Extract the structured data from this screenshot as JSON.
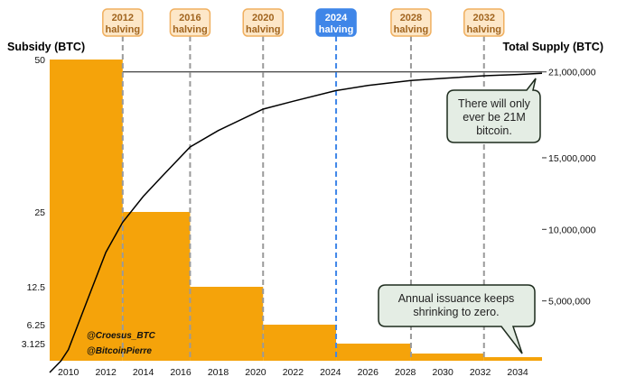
{
  "chart_data": {
    "type": "step-area + line",
    "x_ticks": [
      "2010",
      "2012",
      "2014",
      "2016",
      "2018",
      "2020",
      "2022",
      "2024",
      "2026",
      "2028",
      "2030",
      "2032",
      "2034"
    ],
    "left_axis": {
      "title": "Subsidy (BTC)",
      "tick_labels": [
        "50",
        "25",
        "12.5",
        "6.25",
        "3.125"
      ],
      "tick_values": [
        50,
        25,
        12.5,
        6.25,
        3.125
      ]
    },
    "right_axis": {
      "title": "Total Supply (BTC)",
      "tick_labels": [
        "21,000,000",
        "15,000,000",
        "10,000,000",
        "5,000,000"
      ],
      "tick_values": [
        21000000,
        15000000,
        10000000,
        5000000
      ]
    },
    "subsidy_steps": [
      {
        "from": 2009.0,
        "to": 2012.9,
        "value": 50
      },
      {
        "from": 2012.9,
        "to": 2016.5,
        "value": 25
      },
      {
        "from": 2016.5,
        "to": 2020.4,
        "value": 12.5
      },
      {
        "from": 2020.4,
        "to": 2024.3,
        "value": 6.25
      },
      {
        "from": 2024.3,
        "to": 2028.3,
        "value": 3.125
      },
      {
        "from": 2028.3,
        "to": 2032.2,
        "value": 1.5625
      },
      {
        "from": 2032.2,
        "to": 2035.3,
        "value": 0.78125
      }
    ],
    "supply_series": {
      "x": [
        2009.0,
        2009.6,
        2010.0,
        2011.0,
        2012.0,
        2012.9,
        2014.0,
        2015.0,
        2016.5,
        2018.0,
        2020.4,
        2022.0,
        2024.3,
        2026.0,
        2028.3,
        2030.0,
        2032.2,
        2034.0,
        2035.3
      ],
      "y": [
        0,
        800000,
        1600000,
        5000000,
        8400000,
        10500000,
        12300000,
        13700000,
        15750000,
        16900000,
        18400000,
        18950000,
        19700000,
        20050000,
        20400000,
        20550000,
        20730000,
        20820000,
        20900000
      ]
    },
    "max_supply_line": 21000000,
    "halvings": [
      {
        "year_label": "2012",
        "word": "halving",
        "x": 2012.9,
        "highlight": false
      },
      {
        "year_label": "2016",
        "word": "halving",
        "x": 2016.5,
        "highlight": false
      },
      {
        "year_label": "2020",
        "word": "halving",
        "x": 2020.4,
        "highlight": false
      },
      {
        "year_label": "2024",
        "word": "halving",
        "x": 2024.3,
        "highlight": true
      },
      {
        "year_label": "2028",
        "word": "halving",
        "x": 2028.3,
        "highlight": false
      },
      {
        "year_label": "2032",
        "word": "halving",
        "x": 2032.2,
        "highlight": false
      }
    ],
    "annotations": [
      {
        "lines": [
          "There will only",
          "ever be 21M",
          "bitcoin."
        ]
      },
      {
        "lines": [
          "Annual issuance keeps",
          "shrinking to zero."
        ]
      }
    ],
    "watermarks": [
      "@Croesus_BTC",
      "@BitcoinPierre"
    ],
    "colors": {
      "subsidy_fill": "#f5a30a",
      "supply_line": "#000000",
      "halving_box_fill": "#fde7c8",
      "halving_box_stroke": "#f0b060",
      "halving_text": "#a0641e",
      "highlight_fill": "#3f86e8",
      "highlight_text": "#ffffff",
      "dash_grey": "#9a9a9a",
      "dash_blue": "#3f86e8",
      "callout_fill": "#e4ede4",
      "callout_stroke": "#1d2b1d"
    }
  }
}
